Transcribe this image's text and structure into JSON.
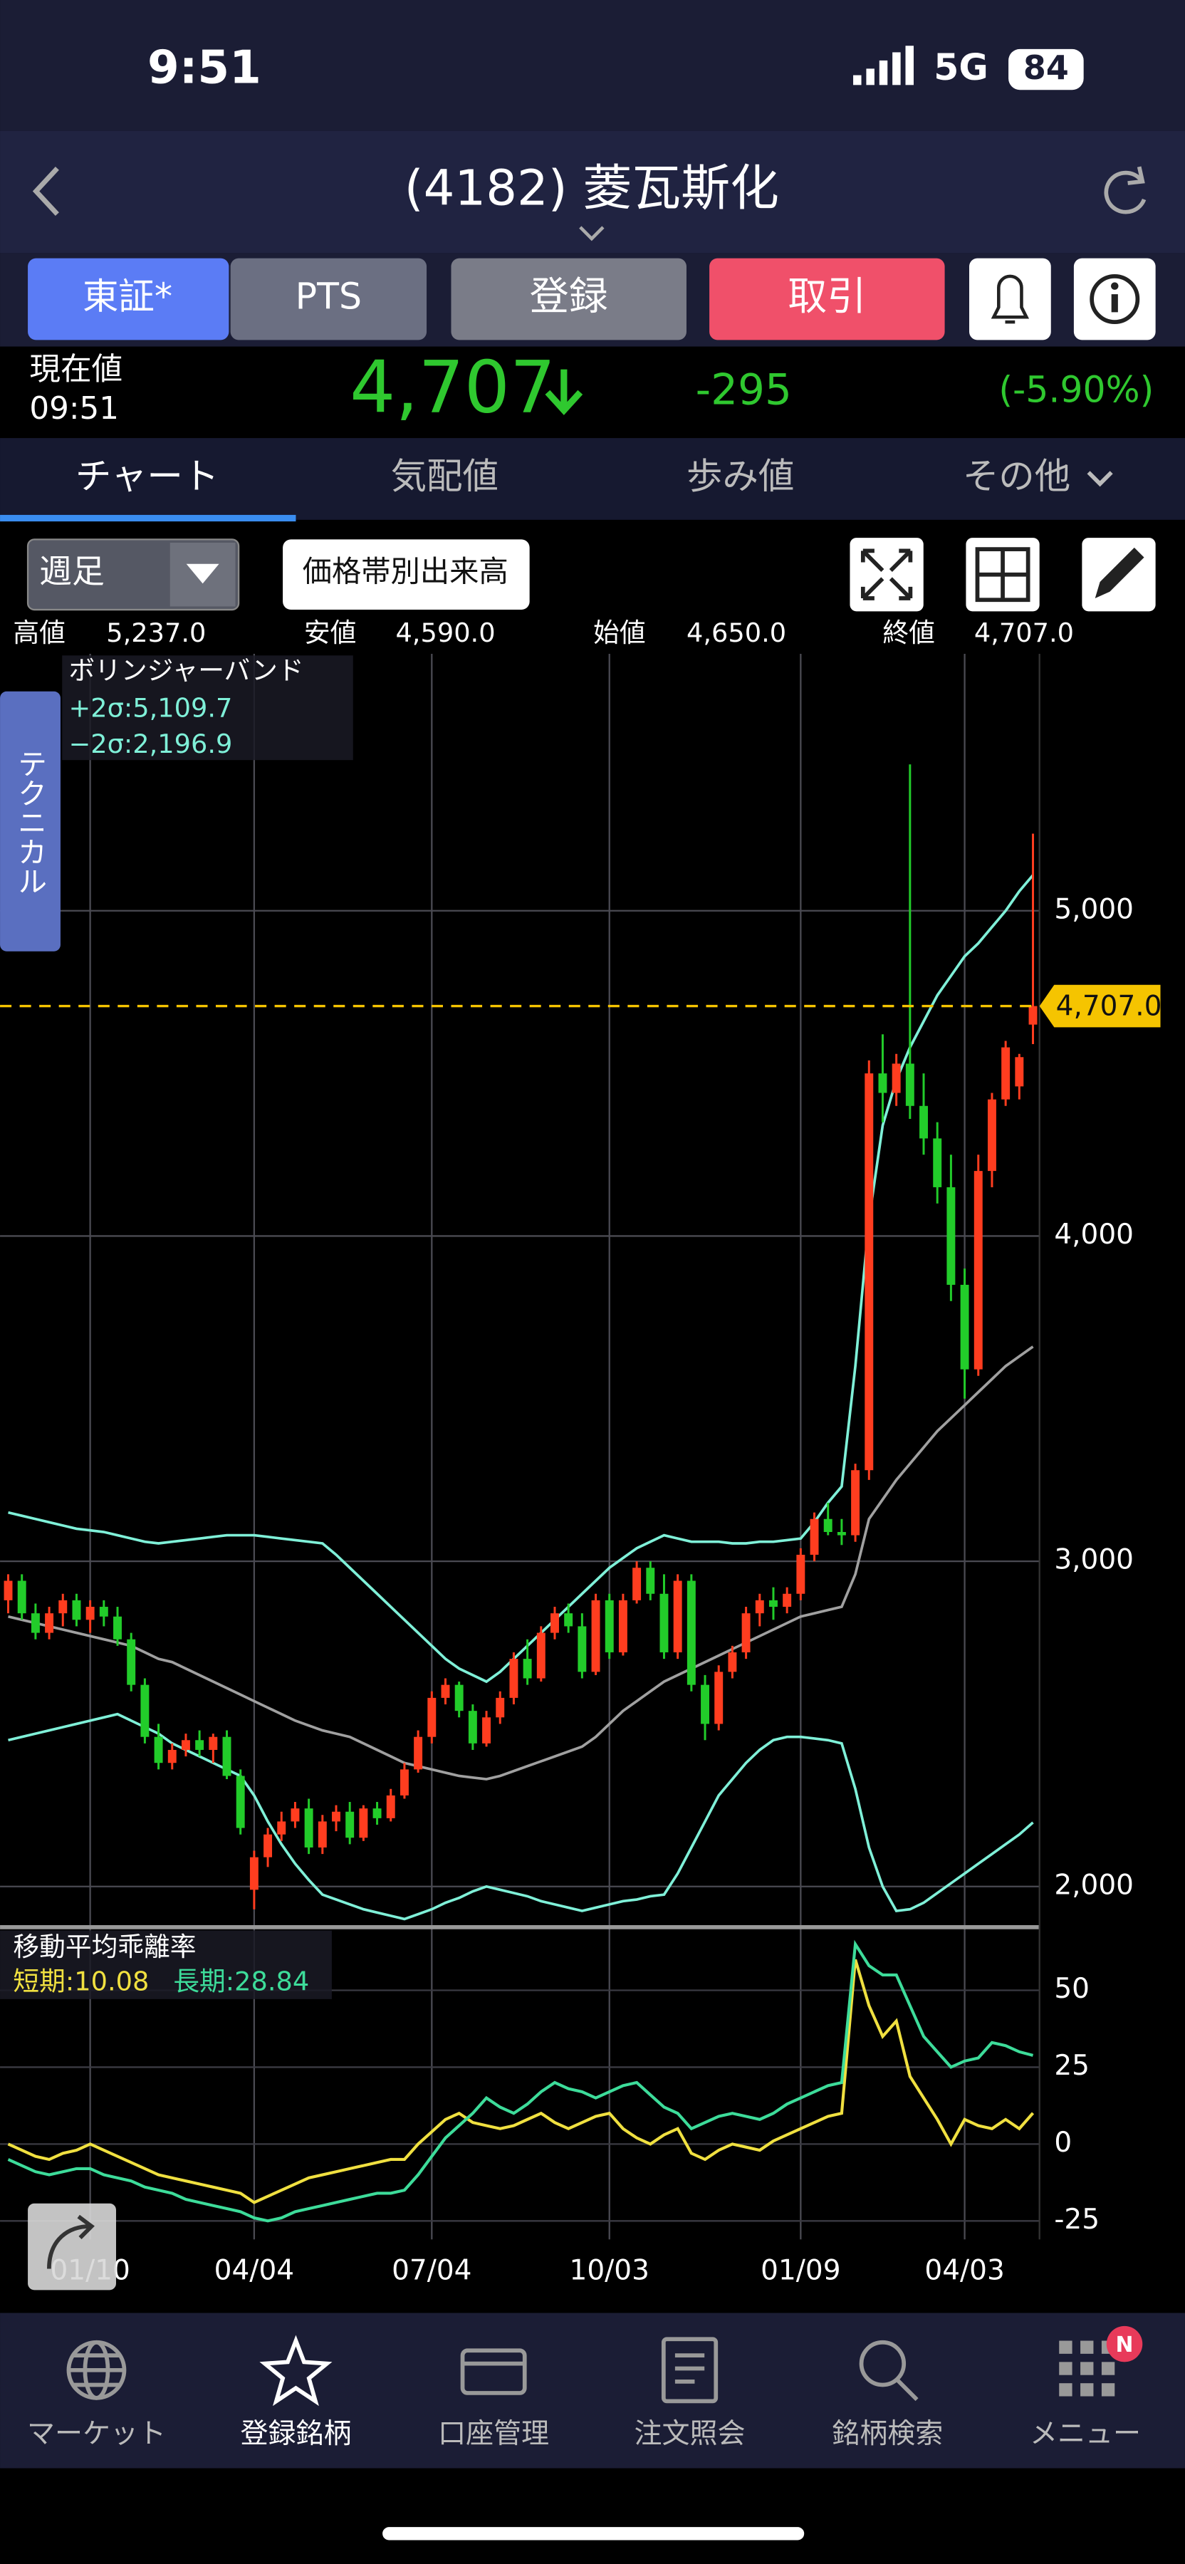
{
  "status_bar": {
    "time": "9:51",
    "network": "5G",
    "battery": "84"
  },
  "header": {
    "title": "(4182) 菱瓦斯化"
  },
  "market_tabs": [
    "東証*",
    "PTS"
  ],
  "buttons": {
    "register": "登録",
    "trade": "取引"
  },
  "quote": {
    "label": "現在値",
    "time": "09:51",
    "price": "4,707",
    "change": "-295",
    "change_pct": "(-5.90%)"
  },
  "tabs": [
    "チャート",
    "気配値",
    "歩み値",
    "その他"
  ],
  "toolbar": {
    "period": "週足",
    "volume_profile": "価格帯別出来高"
  },
  "ohlc": [
    {
      "label": "高値",
      "value": "5,237.0"
    },
    {
      "label": "安値",
      "value": "4,590.0"
    },
    {
      "label": "始値",
      "value": "4,650.0"
    },
    {
      "label": "終値",
      "value": "4,707.0"
    }
  ],
  "side_tab": "テクニカル",
  "chart_data": [
    {
      "type": "candlestick",
      "title": "ボリンジャーバンド",
      "legend": [
        "+2σ:5,109.7",
        "−2σ:2,196.9"
      ],
      "up_color": "#ff3d1f",
      "down_color": "#22cc2a",
      "ylim": [
        1880,
        5790
      ],
      "yticks": [
        {
          "value": 5000,
          "label": "5,000"
        },
        {
          "value": 4000,
          "label": "4,000"
        },
        {
          "value": 3000,
          "label": "3,000"
        },
        {
          "value": 2000,
          "label": "2,000"
        }
      ],
      "grid": true,
      "last": {
        "value": 4707,
        "label": "4,707.0"
      },
      "last_color": "#f5c400",
      "open": [
        2880,
        2940,
        2840,
        2780,
        2840,
        2880,
        2820,
        2860,
        2830,
        2760,
        2620,
        2460,
        2380,
        2420,
        2450,
        2420,
        2460,
        2340,
        1990,
        2090,
        2160,
        2200,
        2240,
        2120,
        2200,
        2230,
        2150,
        2240,
        2210,
        2280,
        2360,
        2460,
        2580,
        2620,
        2540,
        2440,
        2520,
        2580,
        2700,
        2640,
        2780,
        2840,
        2800,
        2660,
        2880,
        2720,
        2880,
        2980,
        2900,
        2720,
        2940,
        2620,
        2500,
        2660,
        2720,
        2840,
        2880,
        2860,
        2900,
        3020,
        3130,
        3090,
        3080,
        3280,
        4500,
        4440,
        4530,
        4400,
        4300,
        4150,
        3850,
        3590,
        4200,
        4420,
        4460,
        4650
      ],
      "high": [
        2960,
        2960,
        2870,
        2860,
        2900,
        2900,
        2880,
        2880,
        2860,
        2780,
        2640,
        2500,
        2440,
        2470,
        2480,
        2470,
        2480,
        2360,
        2110,
        2180,
        2230,
        2260,
        2270,
        2220,
        2250,
        2260,
        2250,
        2260,
        2300,
        2380,
        2480,
        2600,
        2640,
        2630,
        2560,
        2540,
        2600,
        2720,
        2760,
        2800,
        2860,
        2870,
        2840,
        2900,
        2900,
        2900,
        3000,
        3000,
        2960,
        2960,
        2960,
        2650,
        2680,
        2740,
        2860,
        2900,
        2920,
        2920,
        3040,
        3150,
        3180,
        3130,
        3300,
        4540,
        4620,
        4560,
        5450,
        4500,
        4350,
        4250,
        3900,
        4250,
        4440,
        4600,
        4560,
        5237
      ],
      "low": [
        2840,
        2820,
        2760,
        2760,
        2800,
        2800,
        2780,
        2800,
        2740,
        2600,
        2440,
        2360,
        2360,
        2400,
        2400,
        2380,
        2330,
        2160,
        1930,
        2060,
        2140,
        2180,
        2100,
        2100,
        2170,
        2130,
        2140,
        2190,
        2200,
        2270,
        2350,
        2440,
        2560,
        2520,
        2420,
        2430,
        2500,
        2560,
        2620,
        2630,
        2760,
        2780,
        2640,
        2650,
        2700,
        2710,
        2870,
        2880,
        2700,
        2700,
        2600,
        2450,
        2480,
        2640,
        2700,
        2800,
        2820,
        2840,
        2880,
        3000,
        3080,
        3050,
        3060,
        3250,
        4350,
        4400,
        4360,
        4250,
        4100,
        3800,
        3500,
        3570,
        4150,
        4400,
        4420,
        4590
      ],
      "close": [
        2940,
        2840,
        2780,
        2840,
        2880,
        2820,
        2860,
        2830,
        2760,
        2620,
        2460,
        2380,
        2420,
        2450,
        2420,
        2460,
        2340,
        2180,
        2090,
        2160,
        2200,
        2240,
        2120,
        2200,
        2230,
        2150,
        2240,
        2210,
        2280,
        2360,
        2460,
        2580,
        2620,
        2540,
        2440,
        2520,
        2580,
        2700,
        2640,
        2780,
        2840,
        2800,
        2660,
        2880,
        2720,
        2880,
        2980,
        2900,
        2720,
        2940,
        2620,
        2500,
        2660,
        2720,
        2840,
        2880,
        2860,
        2900,
        3020,
        3130,
        3090,
        3080,
        3280,
        4500,
        4440,
        4530,
        4400,
        4300,
        4150,
        3850,
        3590,
        4200,
        4420,
        4580,
        4550,
        4707
      ],
      "series": [
        {
          "color": "#7ff0d8",
          "values": [
            3150,
            3140,
            3130,
            3120,
            3110,
            3100,
            3095,
            3090,
            3080,
            3070,
            3060,
            3055,
            3060,
            3065,
            3070,
            3075,
            3080,
            3080,
            3080,
            3075,
            3070,
            3065,
            3060,
            3055,
            3020,
            2980,
            2940,
            2900,
            2860,
            2820,
            2780,
            2740,
            2700,
            2670,
            2650,
            2630,
            2660,
            2700,
            2740,
            2780,
            2820,
            2860,
            2900,
            2940,
            2980,
            3010,
            3040,
            3060,
            3080,
            3070,
            3060,
            3060,
            3060,
            3055,
            3055,
            3060,
            3060,
            3065,
            3070,
            3120,
            3180,
            3230,
            3600,
            4050,
            4340,
            4480,
            4580,
            4660,
            4740,
            4800,
            4860,
            4900,
            4950,
            5000,
            5060,
            5109.7
          ]
        },
        {
          "color": "#a0a0a0",
          "values": [
            2830,
            2820,
            2810,
            2800,
            2790,
            2780,
            2770,
            2760,
            2750,
            2740,
            2720,
            2700,
            2690,
            2670,
            2650,
            2630,
            2610,
            2590,
            2570,
            2550,
            2530,
            2510,
            2495,
            2480,
            2470,
            2460,
            2440,
            2420,
            2400,
            2380,
            2370,
            2360,
            2350,
            2340,
            2335,
            2330,
            2340,
            2355,
            2370,
            2385,
            2400,
            2415,
            2430,
            2460,
            2500,
            2540,
            2570,
            2600,
            2630,
            2650,
            2670,
            2690,
            2710,
            2730,
            2750,
            2770,
            2790,
            2810,
            2830,
            2840,
            2850,
            2860,
            2960,
            3130,
            3190,
            3250,
            3300,
            3350,
            3400,
            3440,
            3480,
            3520,
            3560,
            3600,
            3630,
            3660
          ]
        },
        {
          "color": "#7ff0d8",
          "values": [
            2450,
            2460,
            2470,
            2480,
            2490,
            2500,
            2510,
            2520,
            2530,
            2510,
            2490,
            2470,
            2440,
            2420,
            2400,
            2380,
            2360,
            2340,
            2280,
            2200,
            2130,
            2070,
            2020,
            1975,
            1960,
            1945,
            1930,
            1920,
            1910,
            1900,
            1915,
            1930,
            1950,
            1965,
            1985,
            2000,
            1990,
            1980,
            1970,
            1955,
            1945,
            1935,
            1925,
            1935,
            1945,
            1955,
            1960,
            1970,
            1975,
            2040,
            2120,
            2200,
            2280,
            2330,
            2380,
            2420,
            2450,
            2460,
            2460,
            2455,
            2450,
            2440,
            2300,
            2120,
            2000,
            1925,
            1930,
            1950,
            1980,
            2010,
            2040,
            2070,
            2100,
            2130,
            2160,
            2196.9
          ]
        }
      ]
    },
    {
      "type": "line",
      "title": "移動平均乖離率",
      "legend": [
        "短期:10.08",
        "長期:28.84"
      ],
      "ylim": [
        -31,
        70
      ],
      "yticks": [
        50,
        25,
        0,
        -25
      ],
      "grid": true,
      "categories": [
        null,
        null,
        null,
        null,
        null,
        null,
        "01/10",
        null,
        null,
        null,
        null,
        null,
        null,
        null,
        null,
        null,
        null,
        null,
        "04/04",
        null,
        null,
        null,
        null,
        null,
        null,
        null,
        null,
        null,
        null,
        null,
        null,
        "07/04",
        null,
        null,
        null,
        null,
        null,
        null,
        null,
        null,
        null,
        null,
        null,
        null,
        "10/03",
        null,
        null,
        null,
        null,
        null,
        null,
        null,
        null,
        null,
        null,
        null,
        null,
        null,
        "01/09",
        null,
        null,
        null,
        null,
        null,
        null,
        null,
        null,
        null,
        null,
        null,
        "04/03",
        null,
        null,
        null,
        null,
        null
      ],
      "series": [
        {
          "color": "#f0e040",
          "values": [
            0,
            -2,
            -4,
            -5,
            -3,
            -2,
            0,
            -2,
            -4,
            -6,
            -8,
            -10,
            -11,
            -12,
            -13,
            -14,
            -15,
            -16,
            -19,
            -17,
            -15,
            -13,
            -11,
            -10,
            -9,
            -8,
            -7,
            -6,
            -5,
            -5,
            0,
            4,
            8,
            10,
            7,
            6,
            5,
            6,
            8,
            10,
            7,
            5,
            7,
            9,
            10,
            5,
            2,
            0,
            3,
            5,
            -3,
            -5,
            -2,
            0,
            -1,
            -2,
            1,
            3,
            5,
            7,
            9,
            10,
            60,
            45,
            35,
            40,
            22,
            15,
            8,
            0,
            8,
            6,
            5,
            8,
            5,
            10.08
          ]
        },
        {
          "color": "#3ddc9a",
          "values": [
            -5,
            -7,
            -9,
            -10,
            -9,
            -8,
            -8,
            -10,
            -11,
            -12,
            -14,
            -15,
            -16,
            -18,
            -19,
            -20,
            -21,
            -22,
            -24,
            -25,
            -24,
            -22,
            -21,
            -20,
            -19,
            -18,
            -17,
            -16,
            -16,
            -15,
            -10,
            -4,
            2,
            6,
            10,
            15,
            12,
            10,
            13,
            17,
            20,
            18,
            17,
            15,
            17,
            19,
            20,
            16,
            12,
            10,
            5,
            7,
            9,
            10,
            9,
            8,
            10,
            13,
            15,
            17,
            19,
            20,
            65,
            58,
            55,
            55,
            45,
            35,
            30,
            25,
            27,
            28,
            33,
            32,
            30,
            28.84
          ]
        }
      ]
    }
  ],
  "nav": [
    "マーケット",
    "登録銘柄",
    "口座管理",
    "注文照会",
    "銘柄検索",
    "メニュー"
  ],
  "badge": "N"
}
